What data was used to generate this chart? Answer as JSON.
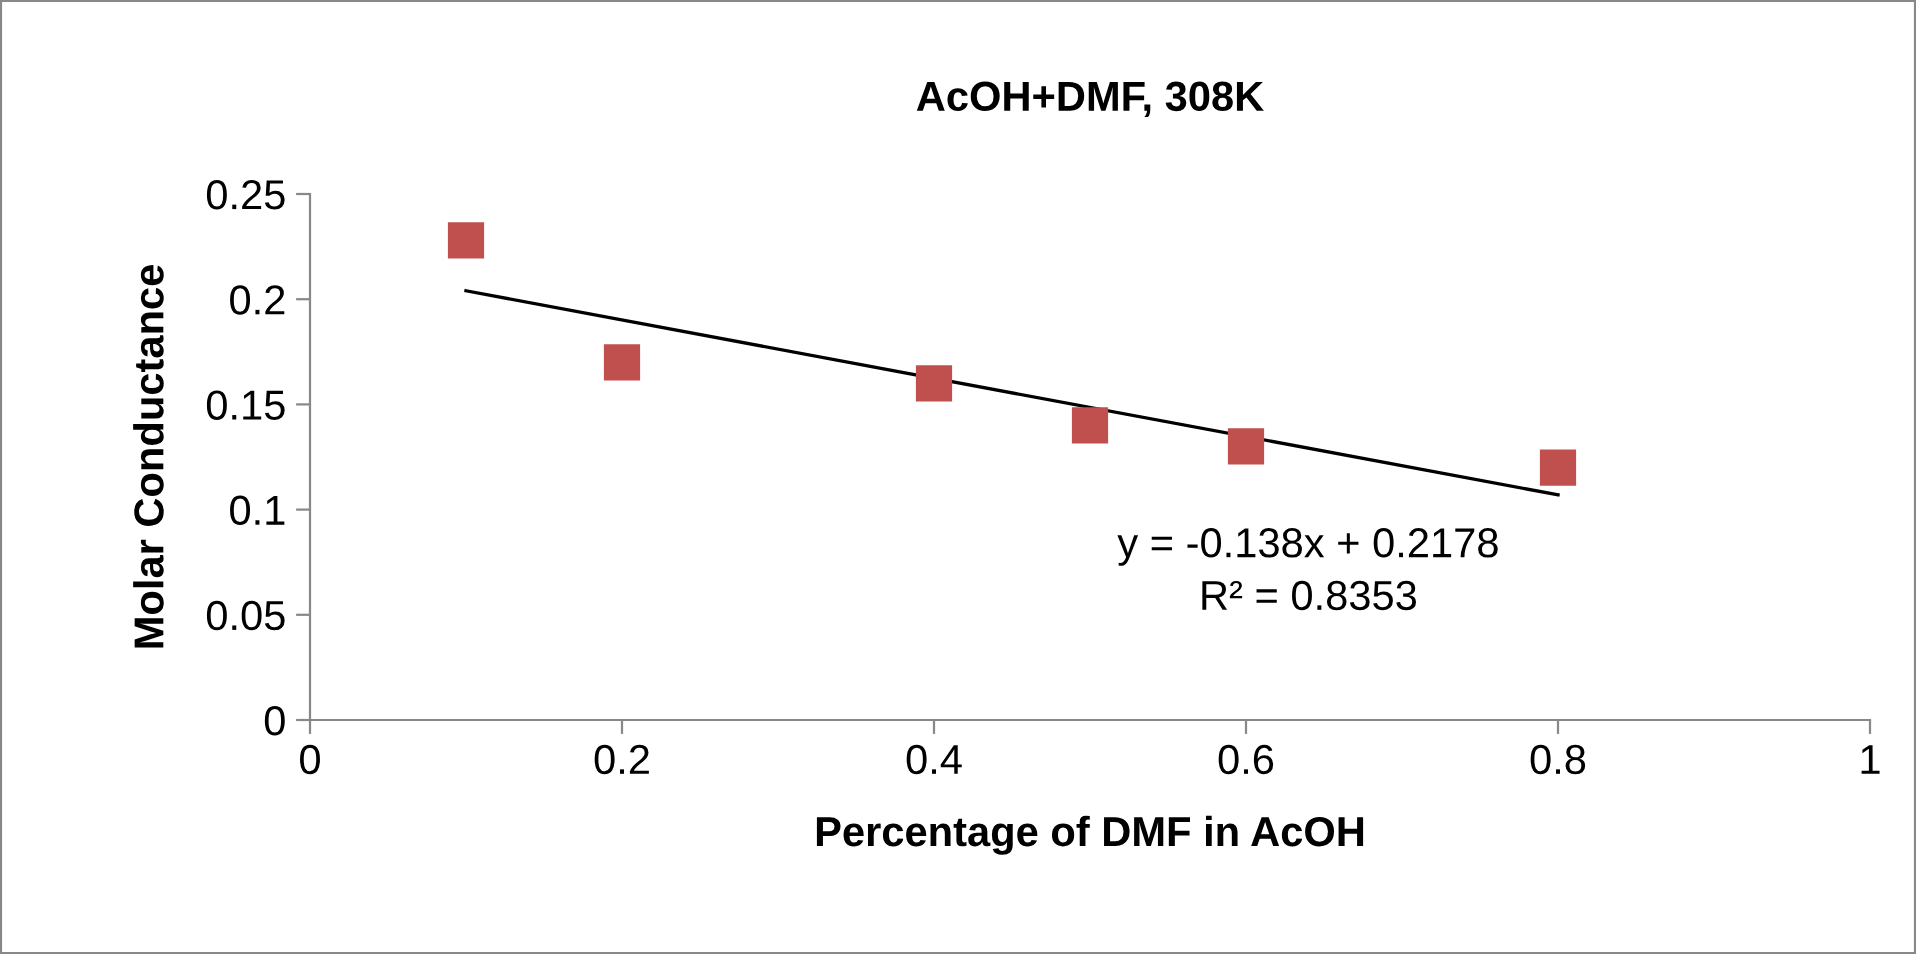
{
  "chart_data": {
    "type": "scatter",
    "title": "AcOH+DMF, 308K",
    "xlabel": "Percentage of DMF in AcOH",
    "ylabel": "Molar Conductance",
    "series": [
      {
        "color": "#c0504d",
        "marker": "square",
        "x": [
          0.1,
          0.2,
          0.4,
          0.5,
          0.6,
          0.8
        ],
        "values": [
          0.228,
          0.17,
          0.16,
          0.14,
          0.13,
          0.12
        ]
      },
      {
        "type": "line",
        "color": "#000000",
        "marker": "none",
        "line_style": "solid",
        "x": [
          0.1,
          0.8
        ],
        "values": [
          0.204,
          0.107
        ]
      }
    ],
    "xlim": [
      0,
      1
    ],
    "xticks": [
      0,
      0.2,
      0.4,
      0.6,
      0.8,
      1
    ],
    "ylim": [
      0,
      0.25
    ],
    "yticks": [
      0,
      0.05,
      0.1,
      0.15,
      0.2,
      0.25
    ],
    "grid": false,
    "annotations": [
      "y = -0.138x + 0.2178",
      "R² = 0.8353"
    ]
  }
}
